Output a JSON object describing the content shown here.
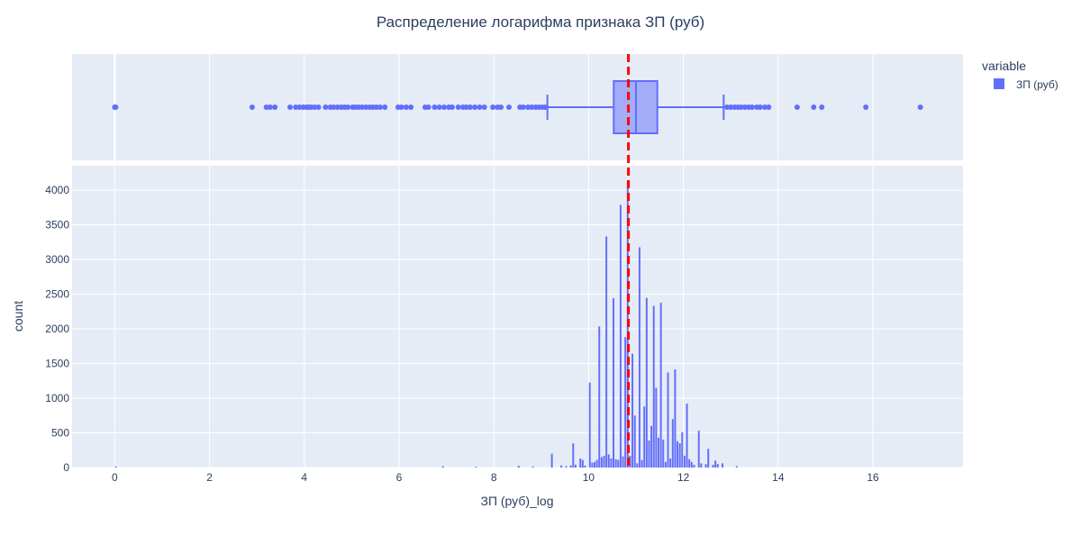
{
  "chart_data": {
    "title": "Распределение логарифма признака ЗП (руб)",
    "xlabel": "ЗП (руб)_log",
    "ylabel": "count",
    "legend": {
      "title": "variable",
      "placement": "top-right",
      "entries": [
        "ЗП (руб)"
      ]
    },
    "colors": {
      "series": "#636efa",
      "median_line": "#ff0000",
      "plot_bg": "#e5ecf6",
      "grid": "#ffffff",
      "text": "#2a3f5f"
    },
    "xlim": [
      -0.9,
      17.9
    ],
    "x_ticks": [
      0,
      2,
      4,
      6,
      8,
      10,
      12,
      14,
      16
    ],
    "x_tick_labels": [
      "0",
      "2",
      "4",
      "6",
      "8",
      "10",
      "12",
      "14",
      "16"
    ],
    "median_line_x": 10.84,
    "subplots": [
      {
        "type": "box",
        "orientation": "horizontal",
        "series": "ЗП (руб)",
        "q1": 10.53,
        "median": 11.0,
        "q3": 11.45,
        "lower_fence": 9.13,
        "upper_fence": 12.85,
        "outliers": [
          0,
          0.02,
          2.9,
          3.2,
          3.28,
          3.38,
          3.7,
          3.82,
          3.9,
          3.98,
          4.05,
          4.1,
          4.15,
          4.22,
          4.3,
          4.45,
          4.55,
          4.62,
          4.7,
          4.78,
          4.85,
          4.92,
          5.02,
          5.08,
          5.15,
          5.22,
          5.3,
          5.38,
          5.45,
          5.52,
          5.6,
          5.7,
          5.98,
          6.05,
          6.15,
          6.25,
          6.55,
          6.62,
          6.75,
          6.85,
          6.95,
          7.05,
          7.12,
          7.25,
          7.35,
          7.42,
          7.5,
          7.6,
          7.7,
          7.8,
          7.98,
          8.08,
          8.15,
          8.32,
          8.55,
          8.62,
          8.72,
          8.8,
          8.88,
          8.95,
          9.02,
          9.08,
          12.92,
          13.0,
          13.08,
          13.15,
          13.22,
          13.3,
          13.38,
          13.45,
          13.55,
          13.62,
          13.72,
          13.8,
          14.4,
          14.75,
          14.92,
          15.85,
          17.0
        ]
      },
      {
        "type": "histogram",
        "series": "ЗП (руб)",
        "ylim": [
          0,
          4350
        ],
        "y_ticks": [
          0,
          500,
          1000,
          1500,
          2000,
          2500,
          3000,
          3500,
          4000
        ],
        "y_tick_labels": [
          "0",
          "500",
          "1000",
          "1500",
          "2000",
          "2500",
          "3000",
          "3500",
          "4000"
        ],
        "bin_width": 0.05,
        "bins": [
          [
            0.0,
            15
          ],
          [
            6.9,
            20
          ],
          [
            7.6,
            12
          ],
          [
            8.5,
            25
          ],
          [
            8.8,
            15
          ],
          [
            9.2,
            200
          ],
          [
            9.4,
            30
          ],
          [
            9.5,
            20
          ],
          [
            9.6,
            30
          ],
          [
            9.65,
            350
          ],
          [
            9.7,
            40
          ],
          [
            9.8,
            130
          ],
          [
            9.85,
            110
          ],
          [
            9.9,
            30
          ],
          [
            10.0,
            1225
          ],
          [
            10.05,
            70
          ],
          [
            10.1,
            80
          ],
          [
            10.15,
            110
          ],
          [
            10.2,
            2035
          ],
          [
            10.25,
            150
          ],
          [
            10.3,
            170
          ],
          [
            10.35,
            3330
          ],
          [
            10.4,
            190
          ],
          [
            10.45,
            130
          ],
          [
            10.5,
            2440
          ],
          [
            10.55,
            120
          ],
          [
            10.6,
            110
          ],
          [
            10.65,
            3785
          ],
          [
            10.7,
            160
          ],
          [
            10.75,
            1880
          ],
          [
            10.8,
            4135
          ],
          [
            10.85,
            170
          ],
          [
            10.9,
            1640
          ],
          [
            10.95,
            750
          ],
          [
            11.0,
            60
          ],
          [
            11.05,
            3175
          ],
          [
            11.1,
            110
          ],
          [
            11.15,
            880
          ],
          [
            11.2,
            2445
          ],
          [
            11.25,
            390
          ],
          [
            11.3,
            600
          ],
          [
            11.35,
            2330
          ],
          [
            11.4,
            1150
          ],
          [
            11.45,
            430
          ],
          [
            11.5,
            2375
          ],
          [
            11.55,
            400
          ],
          [
            11.6,
            80
          ],
          [
            11.65,
            1370
          ],
          [
            11.7,
            130
          ],
          [
            11.75,
            700
          ],
          [
            11.8,
            1415
          ],
          [
            11.85,
            380
          ],
          [
            11.9,
            350
          ],
          [
            11.95,
            510
          ],
          [
            12.0,
            170
          ],
          [
            12.05,
            920
          ],
          [
            12.1,
            120
          ],
          [
            12.15,
            80
          ],
          [
            12.2,
            40
          ],
          [
            12.3,
            530
          ],
          [
            12.35,
            60
          ],
          [
            12.45,
            50
          ],
          [
            12.5,
            270
          ],
          [
            12.6,
            40
          ],
          [
            12.65,
            100
          ],
          [
            12.7,
            50
          ],
          [
            12.8,
            60
          ],
          [
            13.1,
            20
          ]
        ]
      }
    ]
  }
}
